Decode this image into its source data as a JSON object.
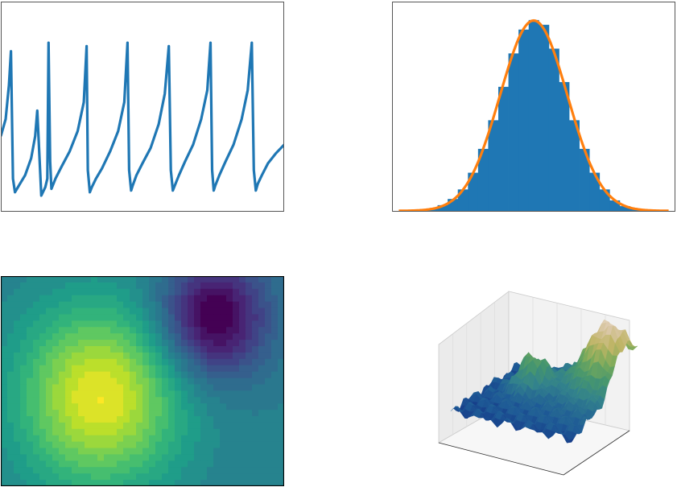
{
  "figure": {
    "panels": [
      "spike-trace",
      "histogram-with-fit",
      "contour-map",
      "surface-3d"
    ]
  },
  "chart_data": [
    {
      "type": "line",
      "title": "",
      "xlabel": "",
      "ylabel": "",
      "ticks_visible": false,
      "grid": false,
      "color": "#1f77b4",
      "xlim": [
        0,
        7
      ],
      "ylim": [
        0.0,
        1.0
      ],
      "x": [
        0.0,
        0.12,
        0.2,
        0.25,
        0.3,
        0.35,
        0.45,
        0.6,
        0.75,
        0.85,
        0.9,
        1.0,
        1.1,
        1.15,
        1.18,
        1.22,
        1.25,
        1.35,
        1.5,
        1.7,
        1.9,
        2.05,
        2.12,
        2.15,
        2.2,
        2.25,
        2.35,
        2.5,
        2.7,
        2.9,
        3.05,
        3.13,
        3.17,
        3.22,
        3.26,
        3.35,
        3.5,
        3.7,
        3.9,
        4.05,
        4.15,
        4.2,
        4.25,
        4.3,
        4.4,
        4.55,
        4.75,
        4.95,
        5.1,
        5.18,
        5.22,
        5.26,
        5.3,
        5.4,
        5.55,
        5.75,
        5.95,
        6.1,
        6.2,
        6.25,
        6.3,
        6.35,
        6.45,
        6.6,
        6.8,
        7.0
      ],
      "y": [
        0.35,
        0.45,
        0.65,
        0.85,
        0.1,
        0.02,
        0.06,
        0.12,
        0.22,
        0.35,
        0.5,
        0.0,
        0.05,
        0.1,
        0.9,
        0.2,
        0.04,
        0.1,
        0.17,
        0.26,
        0.38,
        0.55,
        0.88,
        0.15,
        0.02,
        0.05,
        0.1,
        0.16,
        0.26,
        0.38,
        0.55,
        0.9,
        0.15,
        0.03,
        0.06,
        0.12,
        0.19,
        0.28,
        0.42,
        0.6,
        0.88,
        0.15,
        0.03,
        0.06,
        0.12,
        0.2,
        0.3,
        0.45,
        0.62,
        0.9,
        0.15,
        0.03,
        0.06,
        0.12,
        0.2,
        0.3,
        0.45,
        0.62,
        0.9,
        0.15,
        0.03,
        0.07,
        0.12,
        0.19,
        0.25,
        0.3
      ]
    },
    {
      "type": "bar",
      "title": "",
      "xlabel": "",
      "ylabel": "",
      "ticks_visible": false,
      "grid": false,
      "bar_color": "#1f77b4",
      "fit_color": "#ff7f0e",
      "xlim": [
        -4.2,
        4.2
      ],
      "ylim": [
        0,
        0.42
      ],
      "bin_centers": [
        -3.3,
        -3.0,
        -2.7,
        -2.4,
        -2.1,
        -1.8,
        -1.5,
        -1.2,
        -0.9,
        -0.6,
        -0.3,
        0.0,
        0.3,
        0.6,
        0.9,
        1.2,
        1.5,
        1.8,
        2.1,
        2.4,
        2.7,
        3.0,
        3.3
      ],
      "values": [
        0.002,
        0.005,
        0.012,
        0.025,
        0.045,
        0.08,
        0.13,
        0.19,
        0.26,
        0.33,
        0.38,
        0.4,
        0.39,
        0.34,
        0.27,
        0.19,
        0.13,
        0.08,
        0.045,
        0.022,
        0.01,
        0.004,
        0.002
      ],
      "fit": {
        "name": "",
        "kind": "normal-pdf",
        "mean": 0.0,
        "std": 1.0,
        "x_range": [
          -4.0,
          4.0
        ]
      }
    },
    {
      "type": "heatmap",
      "title": "",
      "xlabel": "",
      "ylabel": "",
      "ticks_visible": false,
      "colormap": "viridis",
      "xlim": [
        -3,
        3
      ],
      "ylim": [
        -2,
        2
      ],
      "peaks": [
        {
          "x": -0.9,
          "y": -0.3,
          "amplitude": 1.0,
          "spread": 1.2
        },
        {
          "x": 1.5,
          "y": 1.2,
          "amplitude": -0.9,
          "spread": 0.8
        }
      ],
      "levels": 20
    },
    {
      "type": "surface",
      "title": "",
      "colormap": "gist_earth",
      "grid": true,
      "description_values": {
        "z_low_region": "left-front",
        "z_high_region": "right-back"
      }
    }
  ]
}
